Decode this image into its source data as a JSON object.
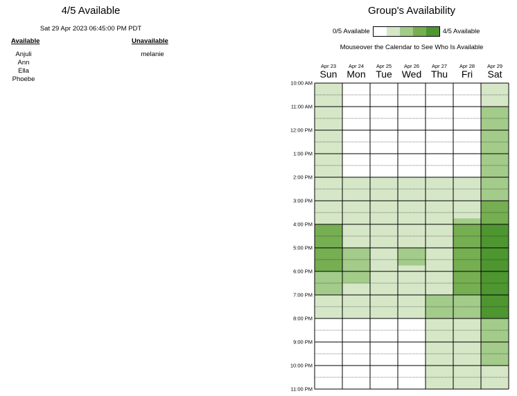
{
  "left": {
    "title": "4/5 Available",
    "datetime": "Sat 29 Apr 2023 06:45:00 PM PDT",
    "available_heading": "Available",
    "unavailable_heading": "Unavailable",
    "available": [
      "Anjuli",
      "Ann",
      "Ella",
      "Phoebe"
    ],
    "unavailable": [
      "melanie"
    ]
  },
  "right": {
    "title": "Group's Availability",
    "legend_min": "0/5 Available",
    "legend_max": "4/5 Available",
    "note": "Mouseover the Calendar to See Who Is Available"
  },
  "colors": [
    "#ffffff",
    "#d6e7c8",
    "#a3cb8a",
    "#76ae52",
    "#4d9630"
  ],
  "days": [
    {
      "date": "Apr 23",
      "name": "Sun"
    },
    {
      "date": "Apr 24",
      "name": "Mon"
    },
    {
      "date": "Apr 25",
      "name": "Tue"
    },
    {
      "date": "Apr 26",
      "name": "Wed"
    },
    {
      "date": "Apr 27",
      "name": "Thu"
    },
    {
      "date": "Apr 28",
      "name": "Fri"
    },
    {
      "date": "Apr 29",
      "name": "Sat"
    }
  ],
  "times": [
    "10:00 AM",
    "11:00 AM",
    "12:00 PM",
    "1:00 PM",
    "2:00 PM",
    "3:00 PM",
    "4:00 PM",
    "5:00 PM",
    "6:00 PM",
    "7:00 PM",
    "8:00 PM",
    "9:00 PM",
    "10:00 PM",
    "11:00 PM"
  ],
  "availability": [
    [
      1,
      1,
      1,
      1,
      1,
      1,
      1,
      1,
      1,
      1,
      1,
      1,
      1,
      1,
      1,
      1,
      1,
      1,
      1,
      1,
      1,
      1,
      1,
      1,
      3,
      3,
      3,
      3,
      3,
      3,
      3,
      3,
      2,
      2,
      2,
      2,
      1,
      1,
      1,
      1,
      0,
      0,
      0,
      0,
      0,
      0,
      0,
      0,
      0,
      0,
      0,
      0
    ],
    [
      0,
      0,
      0,
      0,
      0,
      0,
      0,
      0,
      0,
      0,
      0,
      0,
      0,
      0,
      0,
      0,
      1,
      1,
      1,
      1,
      1,
      1,
      1,
      1,
      1,
      1,
      1,
      1,
      2,
      2,
      2,
      2,
      2,
      2,
      1,
      1,
      1,
      1,
      1,
      1,
      0,
      0,
      0,
      0,
      0,
      0,
      0,
      0,
      0,
      0,
      0,
      0
    ],
    [
      0,
      0,
      0,
      0,
      0,
      0,
      0,
      0,
      0,
      0,
      0,
      0,
      0,
      0,
      0,
      0,
      1,
      1,
      1,
      1,
      1,
      1,
      1,
      1,
      1,
      1,
      1,
      1,
      1,
      1,
      1,
      1,
      1,
      1,
      1,
      1,
      1,
      1,
      1,
      1,
      0,
      0,
      0,
      0,
      0,
      0,
      0,
      0,
      0,
      0,
      0,
      0
    ],
    [
      0,
      0,
      0,
      0,
      0,
      0,
      0,
      0,
      0,
      0,
      0,
      0,
      0,
      0,
      0,
      0,
      1,
      1,
      1,
      1,
      1,
      1,
      1,
      1,
      1,
      1,
      1,
      1,
      2,
      2,
      2,
      1,
      1,
      1,
      1,
      1,
      1,
      1,
      1,
      1,
      0,
      0,
      0,
      0,
      0,
      0,
      0,
      0,
      0,
      0,
      0,
      0
    ],
    [
      0,
      0,
      0,
      0,
      0,
      0,
      0,
      0,
      0,
      0,
      0,
      0,
      0,
      0,
      0,
      0,
      1,
      1,
      1,
      1,
      1,
      1,
      1,
      1,
      1,
      1,
      1,
      1,
      1,
      1,
      1,
      1,
      1,
      1,
      1,
      1,
      2,
      2,
      2,
      2,
      1,
      1,
      1,
      1,
      1,
      1,
      1,
      1,
      1,
      1,
      1,
      1
    ],
    [
      0,
      0,
      0,
      0,
      0,
      0,
      0,
      0,
      0,
      0,
      0,
      0,
      0,
      0,
      0,
      0,
      1,
      1,
      1,
      1,
      1,
      1,
      1,
      2,
      3,
      3,
      3,
      3,
      3,
      3,
      3,
      3,
      3,
      3,
      3,
      3,
      2,
      2,
      2,
      2,
      1,
      1,
      1,
      1,
      1,
      1,
      1,
      1,
      1,
      1,
      1,
      1
    ],
    [
      1,
      1,
      1,
      1,
      2,
      2,
      2,
      2,
      2,
      2,
      2,
      2,
      2,
      2,
      2,
      2,
      2,
      2,
      2,
      2,
      3,
      3,
      3,
      3,
      4,
      4,
      4,
      4,
      4,
      4,
      4,
      4,
      4,
      4,
      4,
      4,
      4,
      4,
      4,
      4,
      2,
      2,
      2,
      2,
      2,
      2,
      2,
      2,
      1,
      1,
      1,
      1
    ]
  ]
}
